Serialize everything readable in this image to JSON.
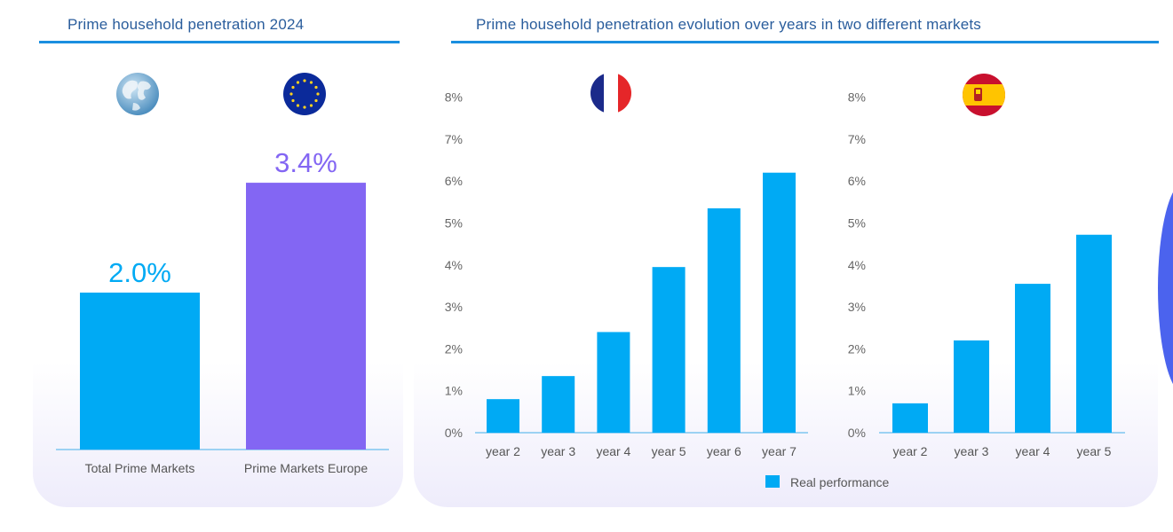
{
  "left_title": "Prime household penetration 2024",
  "right_title": "Prime household penetration evolution over years in two different markets",
  "colors": {
    "blue": "#00aaf4",
    "purple": "#8366f3",
    "axis": "#7fc6f0",
    "title": "#2a5d9c"
  },
  "icons": [
    "globe-icon",
    "eu-flag-icon",
    "france-flag-icon",
    "spain-flag-icon"
  ],
  "legend": {
    "label": "Real performance"
  },
  "chart_data": [
    {
      "type": "bar",
      "title": "Prime household penetration 2024",
      "categories": [
        "Total Prime Markets",
        "Prime Markets Europe"
      ],
      "values": [
        2.0,
        3.4
      ],
      "data_labels": [
        "2.0%",
        "3.4%"
      ],
      "ylim": [
        0,
        4.5
      ],
      "grid": false
    },
    {
      "type": "bar",
      "categories": [
        "year 2",
        "year 3",
        "year 4",
        "year 5",
        "year 6",
        "year 7"
      ],
      "series": [
        {
          "name": "Real performance",
          "values": [
            0.8,
            1.35,
            2.4,
            3.95,
            5.35,
            6.2
          ]
        }
      ],
      "yticks": [
        "0%",
        "1%",
        "2%",
        "3%",
        "4%",
        "5%",
        "6%",
        "7%",
        "8%"
      ],
      "ylim": [
        0,
        8
      ],
      "grid": false
    },
    {
      "type": "bar",
      "categories": [
        "year 2",
        "year 3",
        "year 4",
        "year 5"
      ],
      "series": [
        {
          "name": "Real performance",
          "values": [
            0.7,
            2.2,
            3.55,
            4.72
          ]
        }
      ],
      "yticks": [
        "0%",
        "1%",
        "2%",
        "3%",
        "4%",
        "5%",
        "6%",
        "7%",
        "8%"
      ],
      "ylim": [
        0,
        8
      ],
      "grid": false
    }
  ]
}
